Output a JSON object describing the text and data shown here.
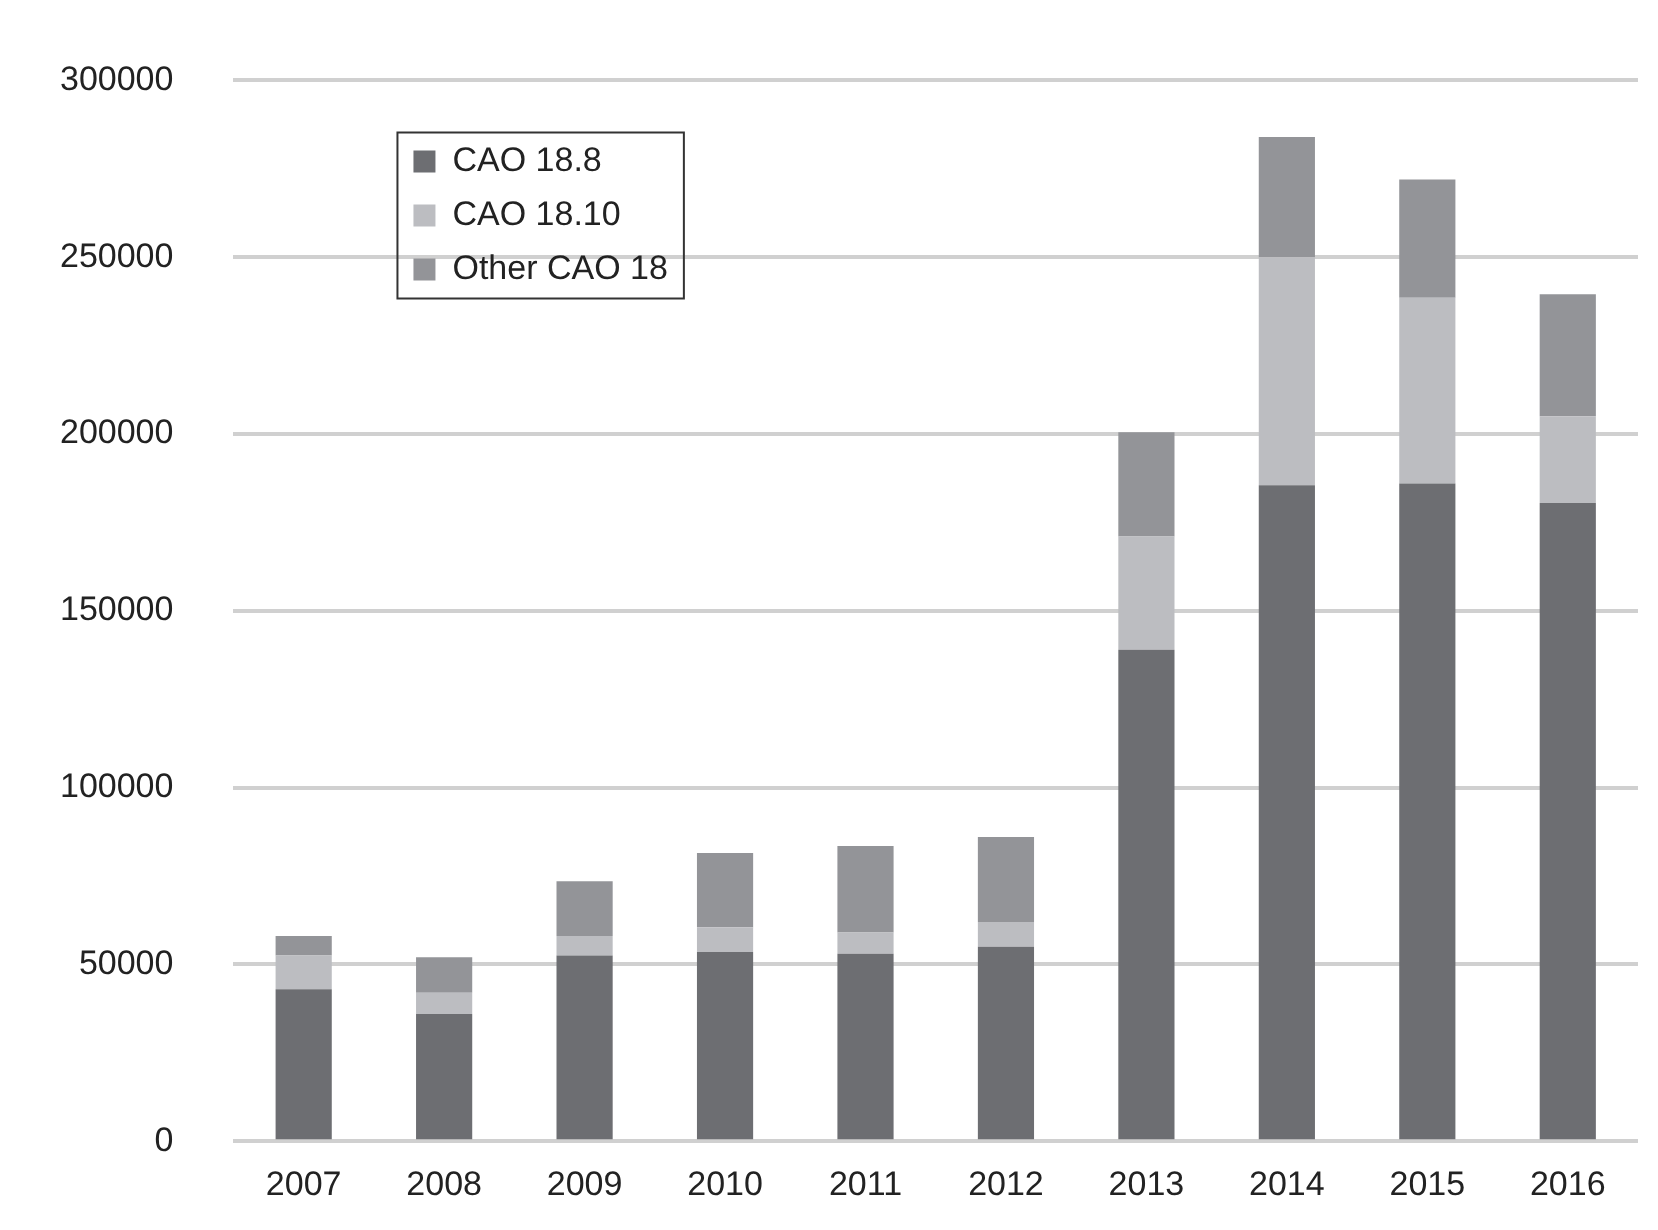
{
  "chart_data": {
    "type": "bar",
    "stacked": true,
    "categories": [
      "2007",
      "2008",
      "2009",
      "2010",
      "2011",
      "2012",
      "2013",
      "2014",
      "2015",
      "2016"
    ],
    "series": [
      {
        "name": "CAO 18.8",
        "color": "#6d6e72",
        "values": [
          43000,
          36000,
          52500,
          53500,
          53000,
          55000,
          139000,
          185500,
          186000,
          180500
        ]
      },
      {
        "name": "CAO 18.10",
        "color": "#bcbdc1",
        "values": [
          9500,
          6000,
          5500,
          7000,
          6000,
          7000,
          32000,
          64500,
          52500,
          24500
        ]
      },
      {
        "name": "Other CAO 18",
        "color": "#939498",
        "values": [
          5500,
          10000,
          15500,
          21000,
          24500,
          24000,
          29500,
          34000,
          33500,
          34500
        ]
      }
    ],
    "ylim": [
      0,
      300000
    ],
    "yticks": [
      0,
      50000,
      100000,
      150000,
      200000,
      250000,
      300000
    ],
    "grid": "y",
    "legend": "top left"
  }
}
